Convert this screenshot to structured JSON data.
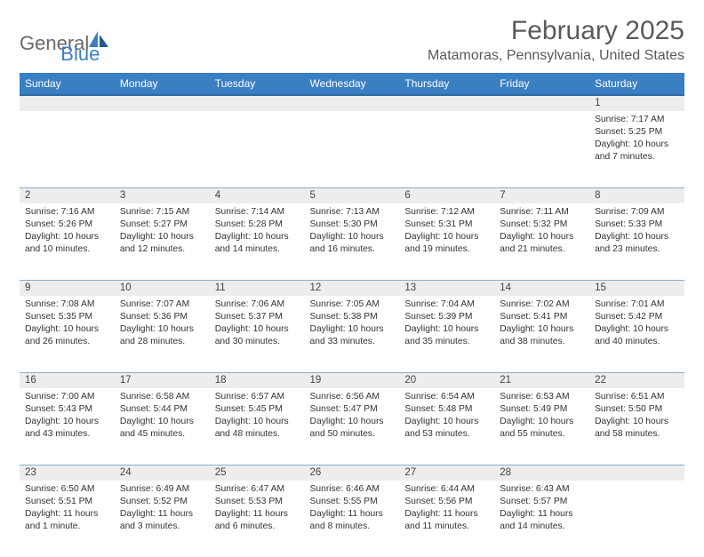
{
  "logo": {
    "text1": "General",
    "text2": "Blue",
    "accent_color": "#3a7fc2",
    "gray_color": "#6a6a6a"
  },
  "title": "February 2025",
  "location": "Matamoras, Pennsylvania, United States",
  "header_bg": "#3a7fc2",
  "daynum_bg": "#ededed",
  "rule_color": "#88aed0",
  "weekdays": [
    "Sunday",
    "Monday",
    "Tuesday",
    "Wednesday",
    "Thursday",
    "Friday",
    "Saturday"
  ],
  "weeks": [
    [
      null,
      null,
      null,
      null,
      null,
      null,
      {
        "n": "1",
        "sunrise": "Sunrise: 7:17 AM",
        "sunset": "Sunset: 5:25 PM",
        "daylight": "Daylight: 10 hours and 7 minutes."
      }
    ],
    [
      {
        "n": "2",
        "sunrise": "Sunrise: 7:16 AM",
        "sunset": "Sunset: 5:26 PM",
        "daylight": "Daylight: 10 hours and 10 minutes."
      },
      {
        "n": "3",
        "sunrise": "Sunrise: 7:15 AM",
        "sunset": "Sunset: 5:27 PM",
        "daylight": "Daylight: 10 hours and 12 minutes."
      },
      {
        "n": "4",
        "sunrise": "Sunrise: 7:14 AM",
        "sunset": "Sunset: 5:28 PM",
        "daylight": "Daylight: 10 hours and 14 minutes."
      },
      {
        "n": "5",
        "sunrise": "Sunrise: 7:13 AM",
        "sunset": "Sunset: 5:30 PM",
        "daylight": "Daylight: 10 hours and 16 minutes."
      },
      {
        "n": "6",
        "sunrise": "Sunrise: 7:12 AM",
        "sunset": "Sunset: 5:31 PM",
        "daylight": "Daylight: 10 hours and 19 minutes."
      },
      {
        "n": "7",
        "sunrise": "Sunrise: 7:11 AM",
        "sunset": "Sunset: 5:32 PM",
        "daylight": "Daylight: 10 hours and 21 minutes."
      },
      {
        "n": "8",
        "sunrise": "Sunrise: 7:09 AM",
        "sunset": "Sunset: 5:33 PM",
        "daylight": "Daylight: 10 hours and 23 minutes."
      }
    ],
    [
      {
        "n": "9",
        "sunrise": "Sunrise: 7:08 AM",
        "sunset": "Sunset: 5:35 PM",
        "daylight": "Daylight: 10 hours and 26 minutes."
      },
      {
        "n": "10",
        "sunrise": "Sunrise: 7:07 AM",
        "sunset": "Sunset: 5:36 PM",
        "daylight": "Daylight: 10 hours and 28 minutes."
      },
      {
        "n": "11",
        "sunrise": "Sunrise: 7:06 AM",
        "sunset": "Sunset: 5:37 PM",
        "daylight": "Daylight: 10 hours and 30 minutes."
      },
      {
        "n": "12",
        "sunrise": "Sunrise: 7:05 AM",
        "sunset": "Sunset: 5:38 PM",
        "daylight": "Daylight: 10 hours and 33 minutes."
      },
      {
        "n": "13",
        "sunrise": "Sunrise: 7:04 AM",
        "sunset": "Sunset: 5:39 PM",
        "daylight": "Daylight: 10 hours and 35 minutes."
      },
      {
        "n": "14",
        "sunrise": "Sunrise: 7:02 AM",
        "sunset": "Sunset: 5:41 PM",
        "daylight": "Daylight: 10 hours and 38 minutes."
      },
      {
        "n": "15",
        "sunrise": "Sunrise: 7:01 AM",
        "sunset": "Sunset: 5:42 PM",
        "daylight": "Daylight: 10 hours and 40 minutes."
      }
    ],
    [
      {
        "n": "16",
        "sunrise": "Sunrise: 7:00 AM",
        "sunset": "Sunset: 5:43 PM",
        "daylight": "Daylight: 10 hours and 43 minutes."
      },
      {
        "n": "17",
        "sunrise": "Sunrise: 6:58 AM",
        "sunset": "Sunset: 5:44 PM",
        "daylight": "Daylight: 10 hours and 45 minutes."
      },
      {
        "n": "18",
        "sunrise": "Sunrise: 6:57 AM",
        "sunset": "Sunset: 5:45 PM",
        "daylight": "Daylight: 10 hours and 48 minutes."
      },
      {
        "n": "19",
        "sunrise": "Sunrise: 6:56 AM",
        "sunset": "Sunset: 5:47 PM",
        "daylight": "Daylight: 10 hours and 50 minutes."
      },
      {
        "n": "20",
        "sunrise": "Sunrise: 6:54 AM",
        "sunset": "Sunset: 5:48 PM",
        "daylight": "Daylight: 10 hours and 53 minutes."
      },
      {
        "n": "21",
        "sunrise": "Sunrise: 6:53 AM",
        "sunset": "Sunset: 5:49 PM",
        "daylight": "Daylight: 10 hours and 55 minutes."
      },
      {
        "n": "22",
        "sunrise": "Sunrise: 6:51 AM",
        "sunset": "Sunset: 5:50 PM",
        "daylight": "Daylight: 10 hours and 58 minutes."
      }
    ],
    [
      {
        "n": "23",
        "sunrise": "Sunrise: 6:50 AM",
        "sunset": "Sunset: 5:51 PM",
        "daylight": "Daylight: 11 hours and 1 minute."
      },
      {
        "n": "24",
        "sunrise": "Sunrise: 6:49 AM",
        "sunset": "Sunset: 5:52 PM",
        "daylight": "Daylight: 11 hours and 3 minutes."
      },
      {
        "n": "25",
        "sunrise": "Sunrise: 6:47 AM",
        "sunset": "Sunset: 5:53 PM",
        "daylight": "Daylight: 11 hours and 6 minutes."
      },
      {
        "n": "26",
        "sunrise": "Sunrise: 6:46 AM",
        "sunset": "Sunset: 5:55 PM",
        "daylight": "Daylight: 11 hours and 8 minutes."
      },
      {
        "n": "27",
        "sunrise": "Sunrise: 6:44 AM",
        "sunset": "Sunset: 5:56 PM",
        "daylight": "Daylight: 11 hours and 11 minutes."
      },
      {
        "n": "28",
        "sunrise": "Sunrise: 6:43 AM",
        "sunset": "Sunset: 5:57 PM",
        "daylight": "Daylight: 11 hours and 14 minutes."
      },
      null
    ]
  ]
}
